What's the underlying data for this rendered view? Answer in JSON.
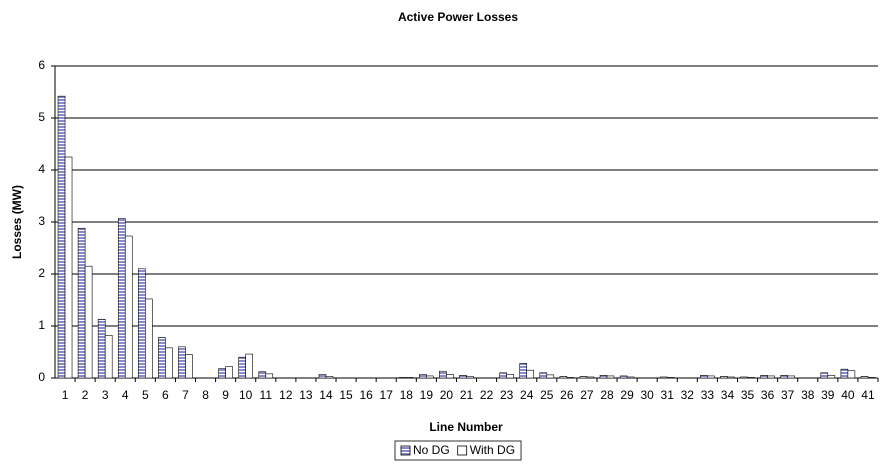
{
  "chart_data": {
    "type": "bar",
    "title": "Active Power Losses",
    "xlabel": "Line Number",
    "ylabel": "Losses (MW)",
    "categories": [
      "1",
      "2",
      "3",
      "4",
      "5",
      "6",
      "7",
      "8",
      "9",
      "10",
      "11",
      "12",
      "13",
      "14",
      "15",
      "16",
      "17",
      "18",
      "19",
      "20",
      "21",
      "22",
      "23",
      "24",
      "25",
      "26",
      "27",
      "28",
      "29",
      "30",
      "31",
      "32",
      "33",
      "34",
      "35",
      "36",
      "37",
      "38",
      "39",
      "40",
      "41"
    ],
    "series": [
      {
        "name": "No DG",
        "color": "#8a8ad0",
        "values": [
          5.42,
          2.88,
          1.13,
          3.07,
          2.1,
          0.78,
          0.6,
          0,
          0.18,
          0.4,
          0.12,
          0,
          0,
          0.07,
          0,
          0,
          0,
          0.01,
          0.07,
          0.13,
          0.05,
          0,
          0.1,
          0.28,
          0.1,
          0.03,
          0.03,
          0.05,
          0.04,
          0,
          0.02,
          0,
          0.05,
          0.03,
          0.02,
          0.05,
          0.05,
          0,
          0.1,
          0.17,
          0.03
        ]
      },
      {
        "name": "With DG",
        "color": "#ffffff",
        "values": [
          4.25,
          2.15,
          0.82,
          2.73,
          1.52,
          0.58,
          0.45,
          0,
          0.22,
          0.46,
          0.08,
          0,
          0,
          0.03,
          0,
          0,
          0,
          0.01,
          0.04,
          0.07,
          0.03,
          0,
          0.07,
          0.15,
          0.06,
          0.01,
          0.02,
          0.04,
          0.02,
          0,
          0.01,
          0,
          0.04,
          0.02,
          0.01,
          0.04,
          0.04,
          0,
          0.05,
          0.14,
          0.01
        ]
      }
    ],
    "ylim": [
      0,
      6
    ],
    "yticks": [
      0,
      1,
      2,
      3,
      4,
      5,
      6
    ],
    "grid": true,
    "legend": "bottom"
  }
}
